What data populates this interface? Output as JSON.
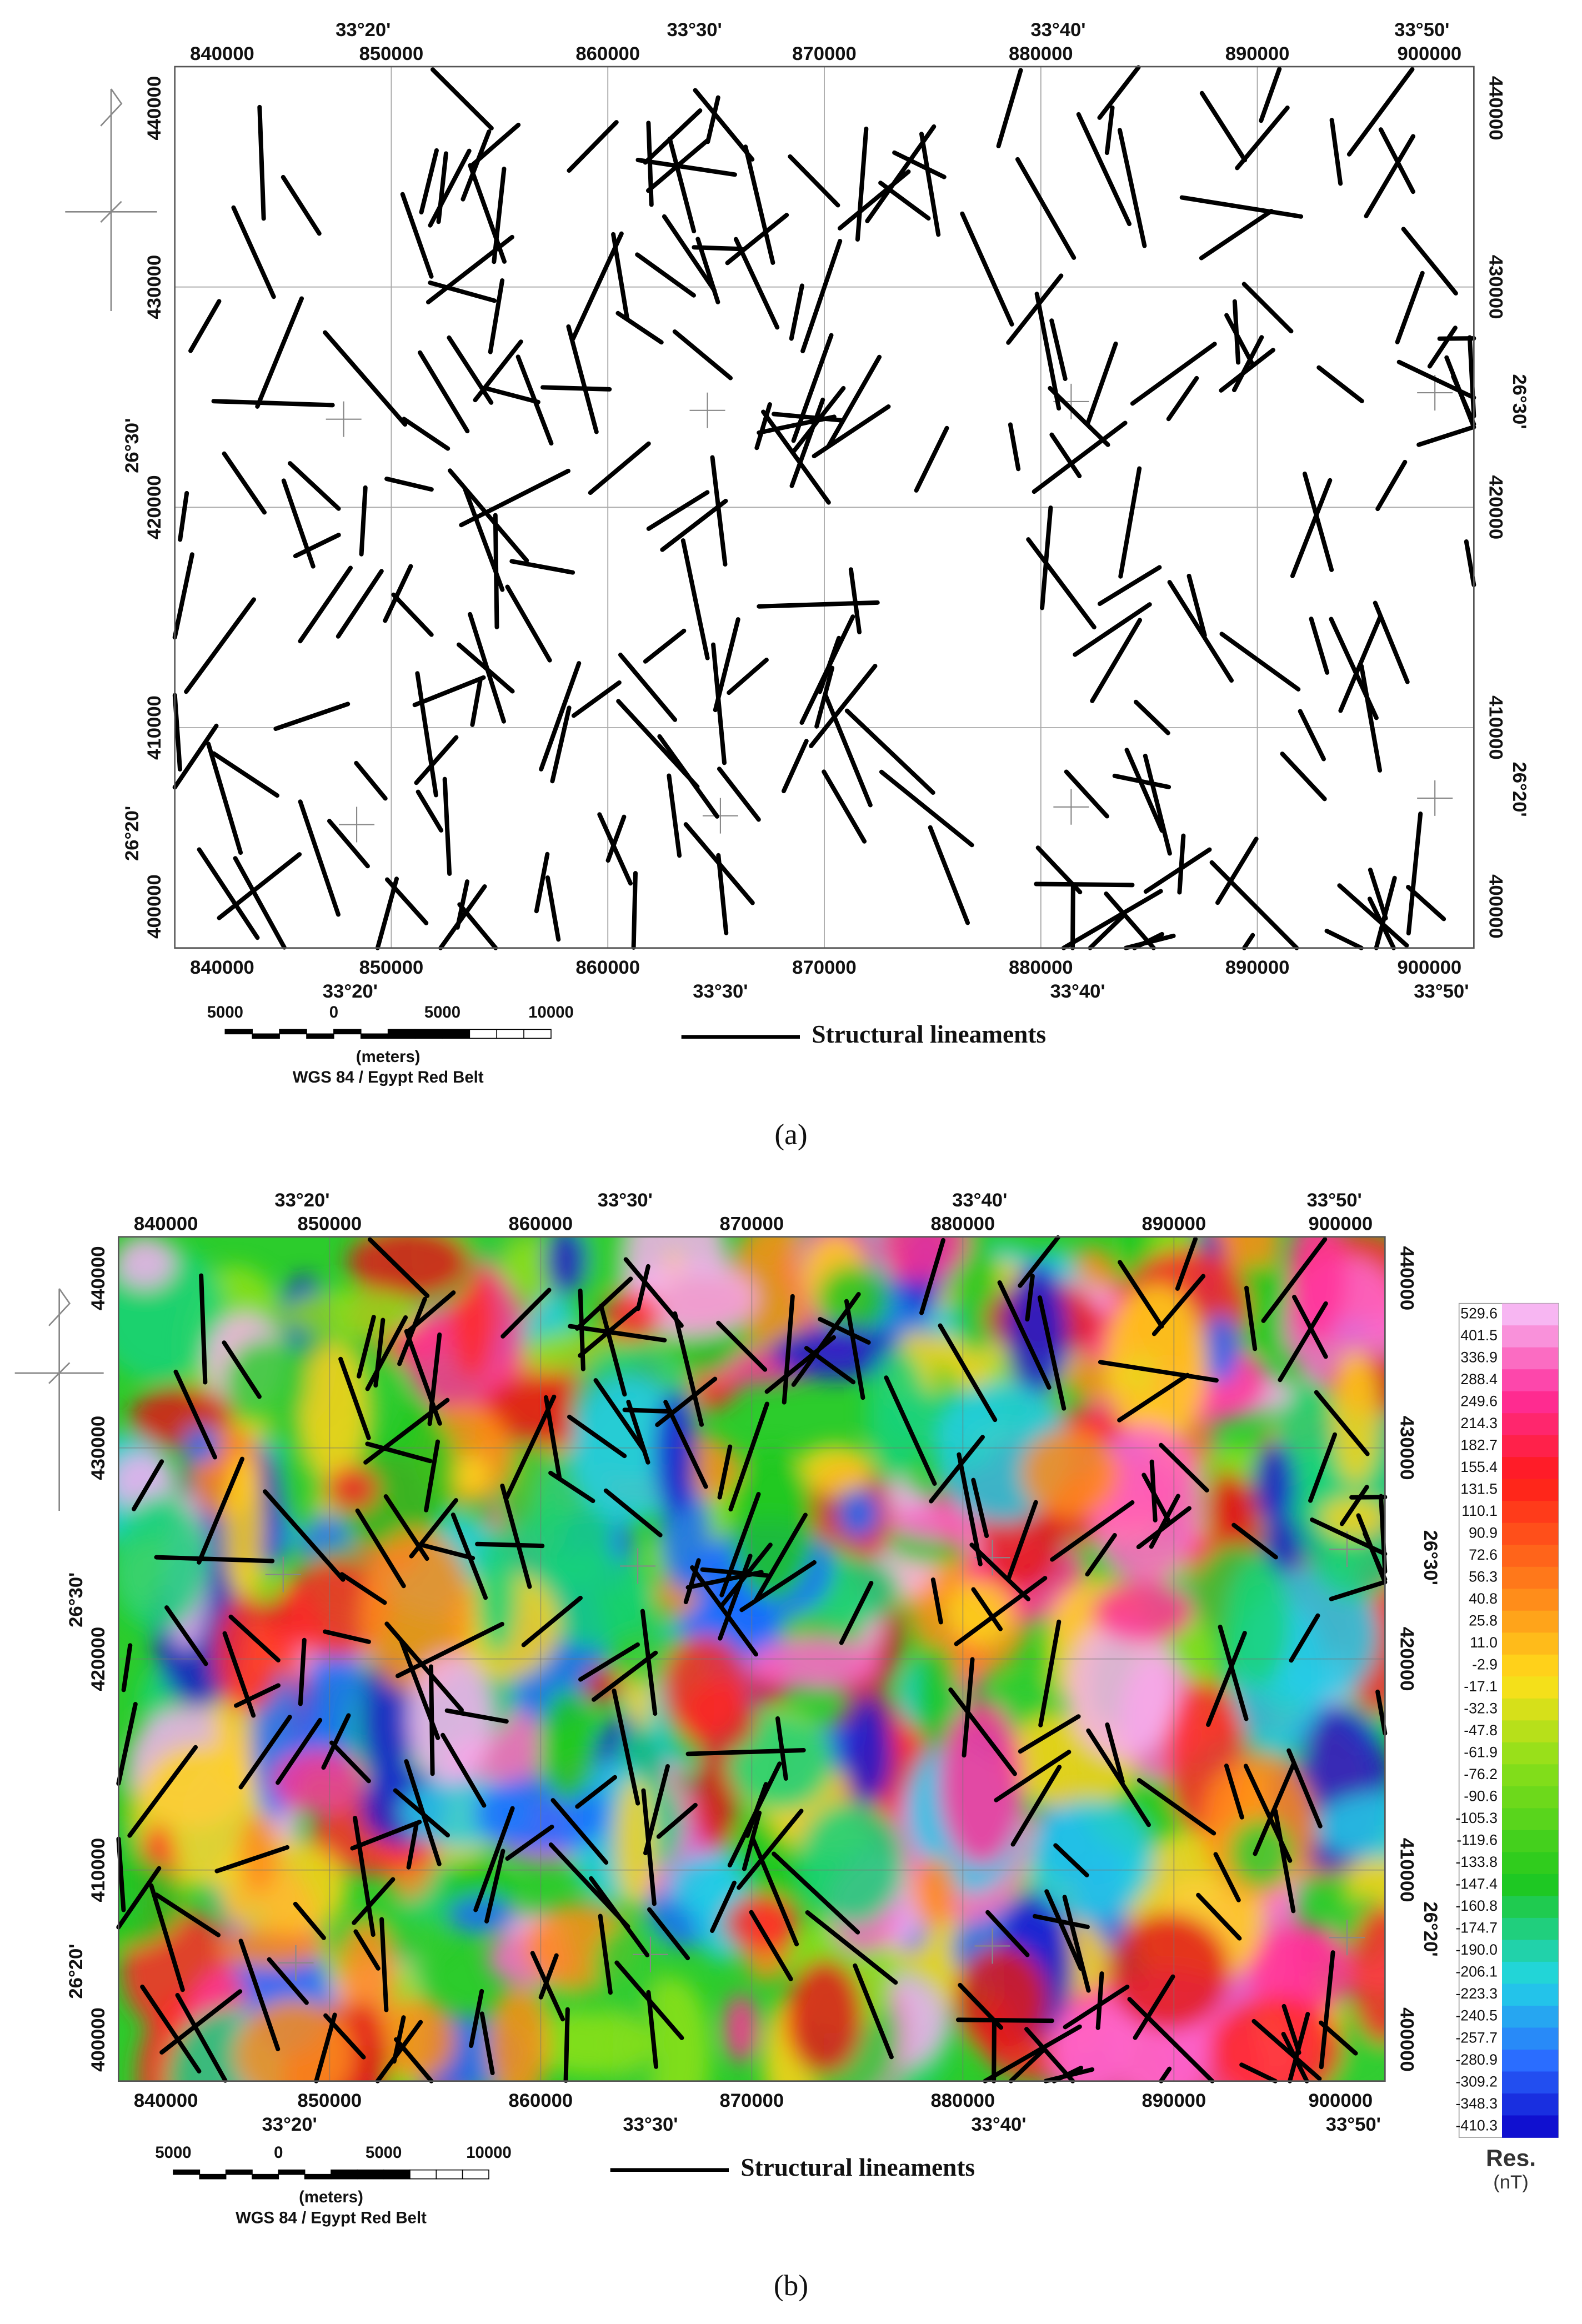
{
  "panels": [
    {
      "caption": "(a)",
      "easting_labels": [
        "840000",
        "850000",
        "860000",
        "870000",
        "880000",
        "890000",
        "900000"
      ],
      "longitude_labels": [
        "33°20'",
        "33°30'",
        "33°40'",
        "33°50'"
      ],
      "northing_labels": [
        "440000",
        "430000",
        "420000",
        "410000",
        "400000"
      ],
      "latitude_labels": [
        "26°30'",
        "26°20'"
      ],
      "scale_labels": [
        "5000",
        "0",
        "5000",
        "10000"
      ],
      "scale_unit": "(meters)",
      "projection": "WGS 84 / Egypt Red Belt",
      "legend": "Structural lineaments"
    },
    {
      "caption": "(b)",
      "easting_labels": [
        "840000",
        "850000",
        "860000",
        "870000",
        "880000",
        "890000",
        "900000"
      ],
      "longitude_labels": [
        "33°20'",
        "33°30'",
        "33°40'",
        "33°50'"
      ],
      "northing_labels": [
        "440000",
        "430000",
        "420000",
        "410000",
        "400000"
      ],
      "latitude_labels": [
        "26°30'",
        "26°20'"
      ],
      "scale_labels": [
        "5000",
        "0",
        "5000",
        "10000"
      ],
      "scale_unit": "(meters)",
      "projection": "WGS 84 / Egypt Red Belt",
      "legend": "Structural lineaments",
      "colorbar": {
        "title": "Res.",
        "unit": "(nT)",
        "labels": [
          "529.6",
          "401.5",
          "336.9",
          "288.4",
          "249.6",
          "214.3",
          "182.7",
          "155.4",
          "131.5",
          "110.1",
          "90.9",
          "72.6",
          "56.3",
          "40.8",
          "25.8",
          "11.0",
          "-2.9",
          "-17.1",
          "-32.3",
          "-47.8",
          "-61.9",
          "-76.2",
          "-90.6",
          "-105.3",
          "-119.6",
          "-133.8",
          "-147.4",
          "-160.8",
          "-174.7",
          "-190.0",
          "-206.1",
          "-223.3",
          "-240.5",
          "-257.7",
          "-280.9",
          "-309.2",
          "-348.3",
          "-410.3"
        ]
      }
    }
  ]
}
